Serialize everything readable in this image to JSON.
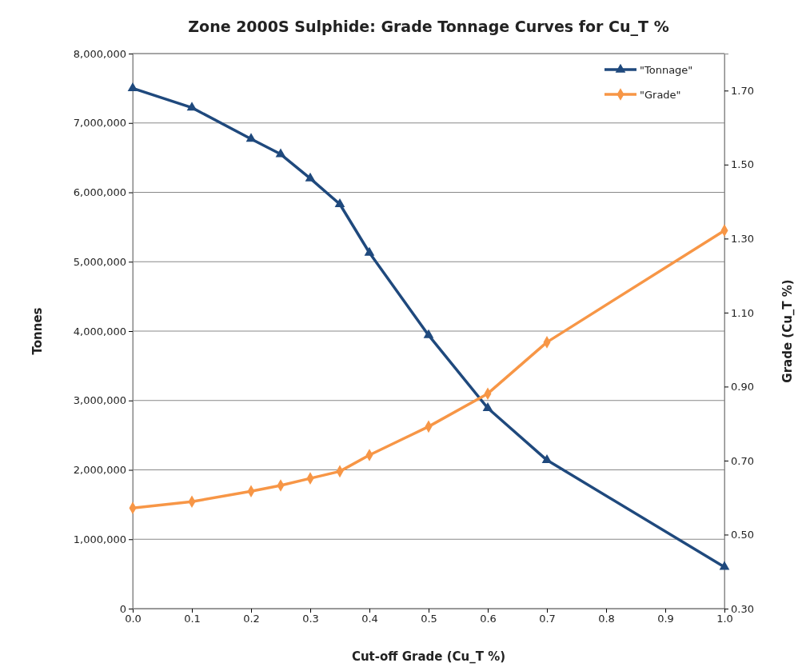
{
  "chart_data": {
    "type": "line",
    "title": "Zone 2000S Sulphide: Grade Tonnage Curves for Cu_T %",
    "xlabel": "Cut-off Grade (Cu_T %)",
    "ylabel": "Tonnes",
    "y2label": "Grade (Cu_T %)",
    "x": [
      0,
      0.1,
      0.2,
      0.25,
      0.3,
      0.35,
      0.4,
      0.5,
      0.6,
      0.7,
      1.0
    ],
    "series": [
      {
        "name": "\"Tonnage\"",
        "color": "#1f497d",
        "marker": "triangle",
        "values": [
          7500000,
          7220000,
          6770000,
          6550000,
          6200000,
          5830000,
          5130000,
          3940000,
          2890000,
          2140000,
          600000
        ]
      },
      {
        "name": "\"Grade\"",
        "color": "#f79646",
        "marker": "diamond",
        "axis": "y2",
        "values": [
          0.572,
          0.589,
          0.617,
          0.633,
          0.652,
          0.671,
          0.715,
          0.792,
          0.881,
          1.02,
          1.322
        ]
      }
    ],
    "xlim": [
      0,
      1.0
    ],
    "xticks": [
      {
        "value": 0,
        "label": "0.0"
      },
      {
        "value": 0.1,
        "label": "0.1"
      },
      {
        "value": 0.2,
        "label": "0.2"
      },
      {
        "value": 0.3,
        "label": "0.3"
      },
      {
        "value": 0.4,
        "label": "0.4"
      },
      {
        "value": 0.5,
        "label": "0.5"
      },
      {
        "value": 0.6,
        "label": "0.6"
      },
      {
        "value": 0.7,
        "label": "0.7"
      },
      {
        "value": 0.8,
        "label": "0.8"
      },
      {
        "value": 0.9,
        "label": "0.9"
      },
      {
        "value": 1.0,
        "label": "1.0"
      }
    ],
    "ylim": [
      0,
      8000000
    ],
    "yticks": [
      {
        "value": 0,
        "label": "0"
      },
      {
        "value": 1000000,
        "label": "1,000,000"
      },
      {
        "value": 2000000,
        "label": "2,000,000"
      },
      {
        "value": 3000000,
        "label": "3,000,000"
      },
      {
        "value": 4000000,
        "label": "4,000,000"
      },
      {
        "value": 5000000,
        "label": "5,000,000"
      },
      {
        "value": 6000000,
        "label": "6,000,000"
      },
      {
        "value": 7000000,
        "label": "7,000,000"
      },
      {
        "value": 8000000,
        "label": "8,000,000"
      }
    ],
    "y2lim": [
      0.3,
      1.8
    ],
    "y2ticks": [
      {
        "value": 0.3,
        "label": "0.30"
      },
      {
        "value": 0.5,
        "label": "0.50"
      },
      {
        "value": 0.7,
        "label": "0.70"
      },
      {
        "value": 0.9,
        "label": "0.90"
      },
      {
        "value": 1.1,
        "label": "1.10"
      },
      {
        "value": 1.3,
        "label": "1.30"
      },
      {
        "value": 1.5,
        "label": "1.50"
      },
      {
        "value": 1.7,
        "label": "1.70"
      }
    ],
    "grid": "y",
    "legend": "top right"
  }
}
